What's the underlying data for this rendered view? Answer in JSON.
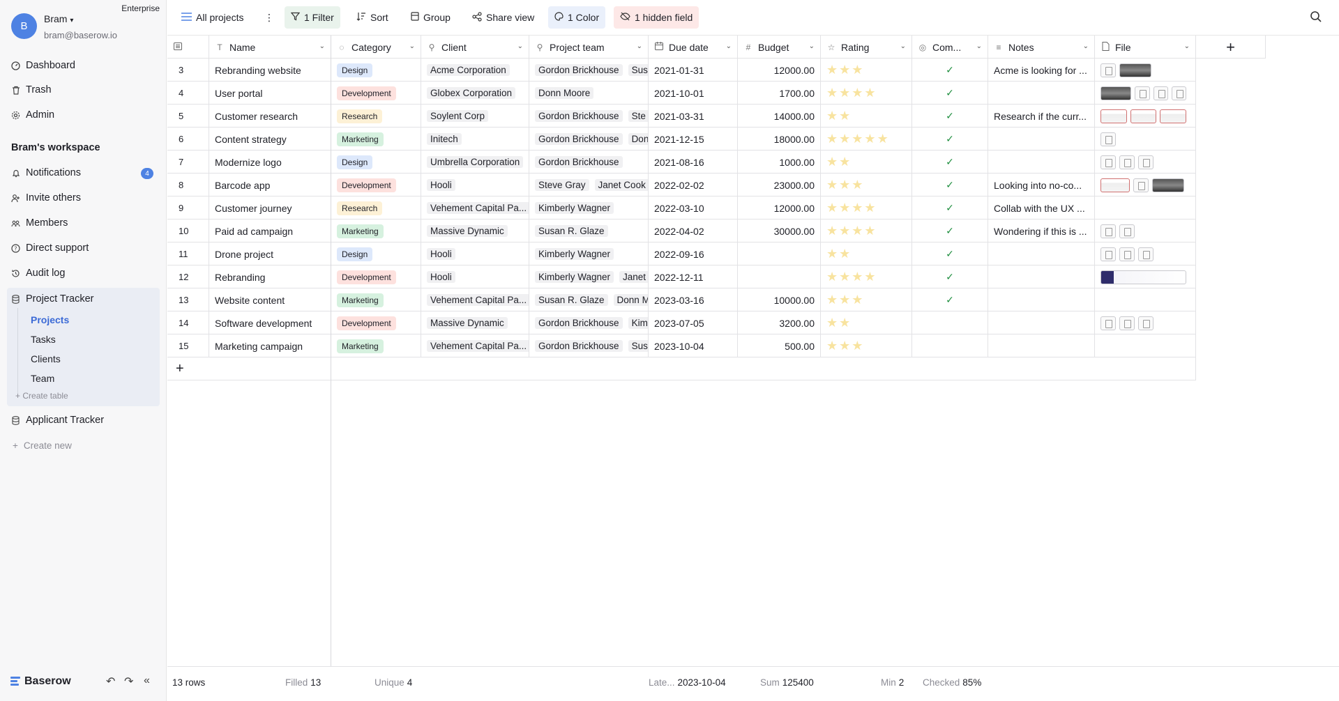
{
  "workspace_badge": "Enterprise",
  "user": {
    "initial": "B",
    "name": "Bram",
    "email": "bram@baserow.io"
  },
  "nav": {
    "dashboard": "Dashboard",
    "trash": "Trash",
    "admin": "Admin"
  },
  "workspace": {
    "title": "Bram's workspace",
    "notifications": "Notifications",
    "notifications_count": "4",
    "invite": "Invite others",
    "members": "Members",
    "support": "Direct support",
    "audit": "Audit log"
  },
  "databases": [
    {
      "name": "Project Tracker",
      "tables": [
        "Projects",
        "Tasks",
        "Clients",
        "Team"
      ],
      "create_table": "Create table"
    },
    {
      "name": "Applicant Tracker"
    }
  ],
  "create_new": "Create new",
  "brand": "Baserow",
  "toolbar": {
    "view": "All projects",
    "filter": "1 Filter",
    "sort": "Sort",
    "group": "Group",
    "share": "Share view",
    "color": "1 Color",
    "hidden": "1 hidden field"
  },
  "columns": [
    "Name",
    "Category",
    "Client",
    "Project team",
    "Due date",
    "Budget",
    "Rating",
    "Com...",
    "Notes",
    "File"
  ],
  "category_colors": {
    "Design": "#dde8fb",
    "Development": "#fde1de",
    "Research": "#fdf1d6",
    "Marketing": "#d6f1df"
  },
  "row_colors": {
    "green": "#8ee4a8",
    "yellow": "#fbd98b"
  },
  "rows": [
    {
      "id": "3",
      "bar": "green",
      "name": "Rebranding website",
      "category": "Design",
      "client": "Acme Corporation",
      "team": [
        "Gordon Brickhouse",
        "Sus"
      ],
      "due": "2021-01-31",
      "budget": "12000.00",
      "rating": 3,
      "done": true,
      "notes": "Acme is looking for ...",
      "files": [
        "logo",
        "img"
      ]
    },
    {
      "id": "4",
      "bar": "yellow",
      "name": "User portal",
      "category": "Development",
      "client": "Globex Corporation",
      "team": [
        "Donn Moore"
      ],
      "due": "2021-10-01",
      "budget": "1700.00",
      "rating": 4,
      "done": true,
      "notes": "",
      "files": [
        "img",
        "doc",
        "doc",
        "doc"
      ]
    },
    {
      "id": "5",
      "bar": "yellow",
      "name": "Customer research",
      "category": "Research",
      "client": "Soylent Corp",
      "team": [
        "Gordon Brickhouse",
        "Ste"
      ],
      "due": "2021-03-31",
      "budget": "14000.00",
      "rating": 2,
      "done": true,
      "notes": "Research if the curr...",
      "files": [
        "shot",
        "shot",
        "shot"
      ]
    },
    {
      "id": "6",
      "bar": "yellow",
      "name": "Content strategy",
      "category": "Marketing",
      "client": "Initech",
      "team": [
        "Gordon Brickhouse",
        "Don"
      ],
      "due": "2021-12-15",
      "budget": "18000.00",
      "rating": 5,
      "done": true,
      "notes": "",
      "files": [
        "doc"
      ]
    },
    {
      "id": "7",
      "bar": "",
      "name": "Modernize logo",
      "category": "Design",
      "client": "Umbrella Corporation",
      "team": [
        "Gordon Brickhouse"
      ],
      "due": "2021-08-16",
      "budget": "1000.00",
      "rating": 2,
      "done": true,
      "notes": "",
      "files": [
        "doc",
        "doc",
        "doc"
      ]
    },
    {
      "id": "8",
      "bar": "green",
      "name": "Barcode app",
      "category": "Development",
      "client": "Hooli",
      "team": [
        "Steve Gray",
        "Janet Cook"
      ],
      "due": "2022-02-02",
      "budget": "23000.00",
      "rating": 3,
      "done": true,
      "notes": "Looking into no-co...",
      "files": [
        "shot",
        "doc",
        "img"
      ]
    },
    {
      "id": "9",
      "bar": "",
      "name": "Customer journey",
      "category": "Research",
      "client": "Vehement Capital Pa...",
      "team": [
        "Kimberly Wagner"
      ],
      "due": "2022-03-10",
      "budget": "12000.00",
      "rating": 4,
      "done": true,
      "notes": "Collab with the UX ...",
      "files": []
    },
    {
      "id": "10",
      "bar": "yellow",
      "name": "Paid ad campaign",
      "category": "Marketing",
      "client": "Massive Dynamic",
      "team": [
        "Susan R. Glaze"
      ],
      "due": "2022-04-02",
      "budget": "30000.00",
      "rating": 4,
      "done": true,
      "notes": "Wondering if this is ...",
      "files": [
        "doc",
        "doc"
      ]
    },
    {
      "id": "11",
      "bar": "",
      "name": "Drone project",
      "category": "Design",
      "client": "Hooli",
      "team": [
        "Kimberly Wagner"
      ],
      "due": "2022-09-16",
      "budget": "",
      "rating": 2,
      "done": true,
      "notes": "",
      "files": [
        "doc",
        "doc",
        "doc"
      ]
    },
    {
      "id": "12",
      "bar": "green",
      "name": "Rebranding",
      "category": "Development",
      "client": "Hooli",
      "team": [
        "Kimberly Wagner",
        "Janet"
      ],
      "due": "2022-12-11",
      "budget": "",
      "rating": 4,
      "done": true,
      "notes": "",
      "files": [
        "wide"
      ]
    },
    {
      "id": "13",
      "bar": "",
      "name": "Website content",
      "category": "Marketing",
      "client": "Vehement Capital Pa...",
      "team": [
        "Susan R. Glaze",
        "Donn M"
      ],
      "due": "2023-03-16",
      "budget": "10000.00",
      "rating": 3,
      "done": true,
      "notes": "",
      "files": []
    },
    {
      "id": "14",
      "bar": "",
      "name": "Software development",
      "category": "Development",
      "client": "Massive Dynamic",
      "team": [
        "Gordon Brickhouse",
        "Kim"
      ],
      "due": "2023-07-05",
      "budget": "3200.00",
      "rating": 2,
      "done": false,
      "notes": "",
      "files": [
        "doc",
        "doc",
        "doc"
      ]
    },
    {
      "id": "15",
      "bar": "",
      "name": "Marketing campaign",
      "category": "Marketing",
      "client": "Vehement Capital Pa...",
      "team": [
        "Gordon Brickhouse",
        "Sus"
      ],
      "due": "2023-10-04",
      "budget": "500.00",
      "rating": 3,
      "done": false,
      "notes": "",
      "files": []
    }
  ],
  "footer": {
    "rows": "13 rows",
    "filled_label": "Filled",
    "filled_value": "13",
    "unique_label": "Unique",
    "unique_value": "4",
    "latest_label": "Late...",
    "latest_value": "2023-10-04",
    "sum_label": "Sum",
    "sum_value": "125400",
    "min_label": "Min",
    "min_value": "2",
    "checked_label": "Checked",
    "checked_value": "85%"
  }
}
